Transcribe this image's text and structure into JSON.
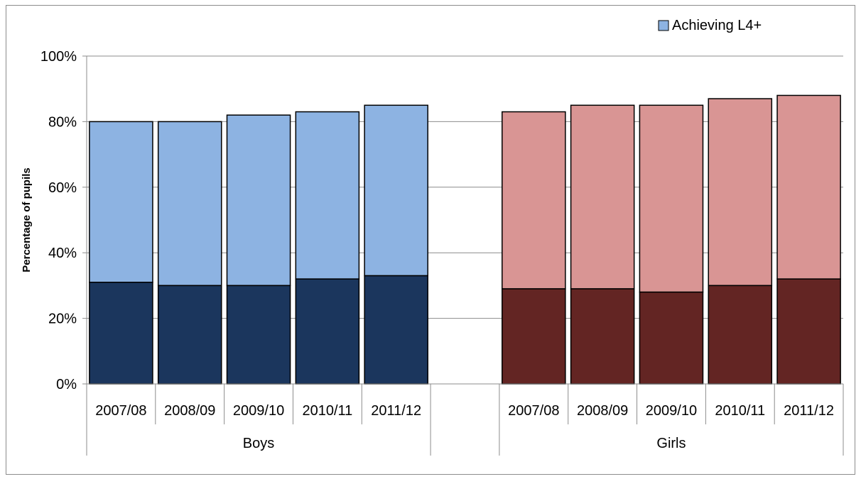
{
  "chart_data": {
    "type": "bar",
    "stacked": true,
    "groups": [
      {
        "name": "Boys",
        "categories": [
          "2007/08",
          "2008/09",
          "2009/10",
          "2010/11",
          "2011/12"
        ],
        "lower_values": [
          31,
          30,
          30,
          32,
          33
        ],
        "total_values": [
          80,
          80,
          82,
          83,
          85
        ],
        "colors": {
          "lower": "#1b365d",
          "upper": "#8db3e2"
        }
      },
      {
        "name": "Girls",
        "categories": [
          "2007/08",
          "2008/09",
          "2009/10",
          "2010/11",
          "2011/12"
        ],
        "lower_values": [
          29,
          29,
          28,
          30,
          32
        ],
        "total_values": [
          83,
          85,
          85,
          87,
          88
        ],
        "colors": {
          "lower": "#632523",
          "upper": "#d99594"
        }
      }
    ],
    "legend": [
      {
        "label": "Achieving L4+",
        "color": "#8db3e2"
      }
    ],
    "legend_position": "top-right",
    "ylabel": "Percentage of pupils",
    "ylim": [
      0,
      100
    ],
    "yticks": [
      0,
      20,
      40,
      60,
      80,
      100
    ],
    "ytick_suffix": "%",
    "grid": true
  }
}
